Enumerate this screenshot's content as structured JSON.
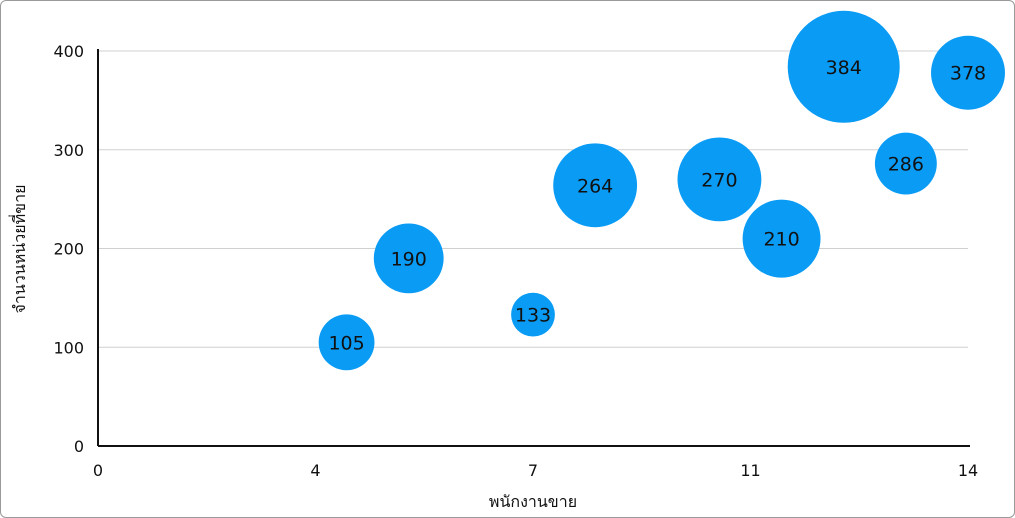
{
  "chart_data": {
    "type": "scatter",
    "subtype": "bubble",
    "title": "",
    "xlabel": "พนักงานขาย",
    "ylabel": "จำนวนหน่วยที่ขาย",
    "xlim": [
      0,
      14
    ],
    "ylim": [
      0,
      400
    ],
    "x_ticks": [
      0,
      3.5,
      7,
      10.5,
      14
    ],
    "x_tick_labels": [
      "0",
      "4",
      "7",
      "11",
      "14"
    ],
    "y_ticks": [
      0,
      100,
      200,
      300,
      400
    ],
    "y_tick_labels": [
      "0",
      "100",
      "200",
      "300",
      "400"
    ],
    "grid": "horizontal",
    "bubble_color": "#0A9BF5",
    "points": [
      {
        "x": 4,
        "y": 105,
        "size": 78,
        "label": "105"
      },
      {
        "x": 5,
        "y": 190,
        "size": 122,
        "label": "190"
      },
      {
        "x": 7,
        "y": 133,
        "size": 48,
        "label": "133"
      },
      {
        "x": 8,
        "y": 264,
        "size": 176,
        "label": "264"
      },
      {
        "x": 10,
        "y": 270,
        "size": 176,
        "label": "270"
      },
      {
        "x": 11,
        "y": 210,
        "size": 152,
        "label": "210"
      },
      {
        "x": 12,
        "y": 384,
        "size": 314,
        "label": "384"
      },
      {
        "x": 13,
        "y": 286,
        "size": 96,
        "label": "286"
      },
      {
        "x": 14,
        "y": 378,
        "size": 137,
        "label": "378"
      }
    ]
  }
}
